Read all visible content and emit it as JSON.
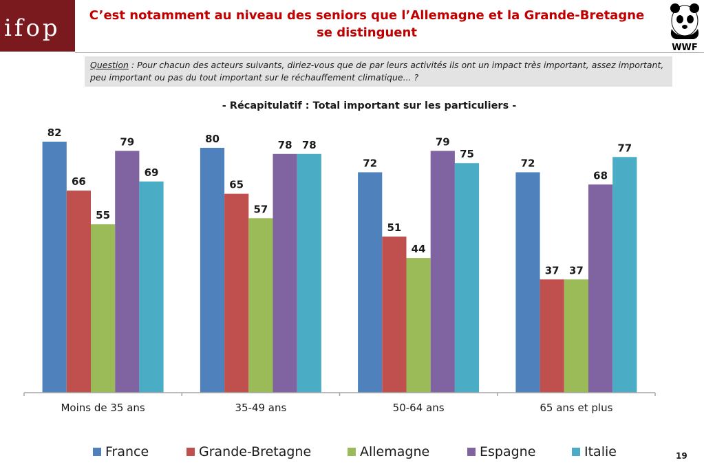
{
  "header": {
    "logo_text": "ifop",
    "title": "C’est notamment au niveau des seniors que l’Allemagne et la Grande-Bretagne se distinguent",
    "partner_logo_text": "WWF"
  },
  "question": {
    "label": "Question",
    "text": " : Pour chacun des acteurs suivants, diriez-vous que de par leurs activités ils ont un impact très important, assez important, peu important ou pas du tout important sur le réchauffement climatique... ?"
  },
  "subtitle": "- Récapitulatif : Total important sur les particuliers -",
  "chart_data": {
    "type": "bar",
    "categories": [
      "Moins de 35 ans",
      "35-49 ans",
      "50-64 ans",
      "65 ans et plus"
    ],
    "series": [
      {
        "name": "France",
        "color": "#4f81bd",
        "values": [
          82,
          80,
          72,
          72
        ]
      },
      {
        "name": "Grande-Bretagne",
        "color": "#c0504d",
        "values": [
          66,
          65,
          51,
          37
        ]
      },
      {
        "name": "Allemagne",
        "color": "#9bbb59",
        "values": [
          55,
          57,
          44,
          37
        ]
      },
      {
        "name": "Espagne",
        "color": "#8064a2",
        "values": [
          79,
          78,
          79,
          68
        ]
      },
      {
        "name": "Italie",
        "color": "#4bacc6",
        "values": [
          69,
          78,
          75,
          77
        ]
      }
    ],
    "ylim": [
      0,
      82
    ],
    "grid": false,
    "data_labels": true,
    "legend_position": "bottom"
  },
  "page_number": "19"
}
